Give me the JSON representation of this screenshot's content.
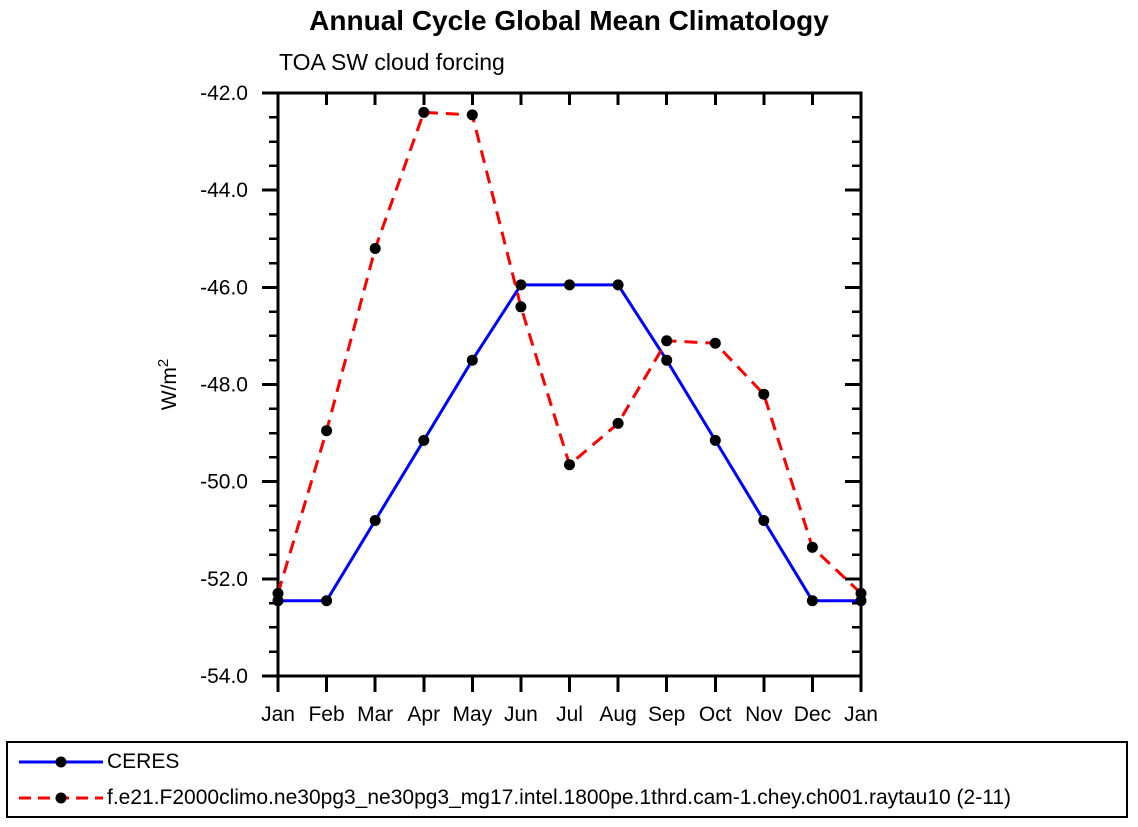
{
  "title": "Annual Cycle Global Mean Climatology",
  "subtitle": "TOA SW cloud forcing",
  "chart_data": {
    "type": "line",
    "title": "Annual Cycle Global Mean Climatology",
    "subtitle": "TOA SW cloud forcing",
    "xlabel": "",
    "ylabel": "W/m²",
    "ylabel_base": "W/m",
    "ylabel_superscript": "2",
    "categories": [
      "Jan",
      "Feb",
      "Mar",
      "Apr",
      "May",
      "Jun",
      "Jul",
      "Aug",
      "Sep",
      "Oct",
      "Nov",
      "Dec",
      "Jan"
    ],
    "series": [
      {
        "name": "CERES",
        "color": "#0000ff",
        "line_style": "solid",
        "marker": "filled-circle",
        "marker_color": "#000000",
        "values": [
          -52.45,
          -52.45,
          -50.8,
          -49.15,
          -47.5,
          -45.95,
          -45.95,
          -45.95,
          -47.5,
          -49.15,
          -50.8,
          -52.45,
          -52.45
        ]
      },
      {
        "name": "f.e21.F2000climo.ne30pg3_ne30pg3_mg17.intel.1800pe.1thrd.cam-1.chey.ch001.raytau10 (2-11)",
        "color": "#ff0000",
        "line_style": "dashed",
        "marker": "filled-circle",
        "marker_color": "#000000",
        "values": [
          -52.3,
          -48.95,
          -45.2,
          -42.4,
          -42.45,
          -46.4,
          -49.65,
          -48.8,
          -47.1,
          -47.15,
          -48.2,
          -51.35,
          -52.3
        ]
      }
    ],
    "ylim": [
      -54.0,
      -42.0
    ],
    "yticks": [
      -42,
      -44,
      -46,
      -48,
      -50,
      -52,
      -54
    ],
    "ytick_labels": [
      "-42.0",
      "-44.0",
      "-46.0",
      "-48.0",
      "-50.0",
      "-52.0",
      "-54.0"
    ],
    "y_minor_tick_step": 0.5,
    "grid": false,
    "legend_position": "bottom-box"
  },
  "legend": {
    "entries": [
      {
        "label": "CERES"
      },
      {
        "label": "f.e21.F2000climo.ne30pg3_ne30pg3_mg17.intel.1800pe.1thrd.cam-1.chey.ch001.raytau10 (2-11)"
      }
    ]
  },
  "colors": {
    "axis": "#000000",
    "marker": "#000000",
    "ceres_line": "#0000ff",
    "model_line": "#ff0000",
    "background": "#ffffff"
  }
}
